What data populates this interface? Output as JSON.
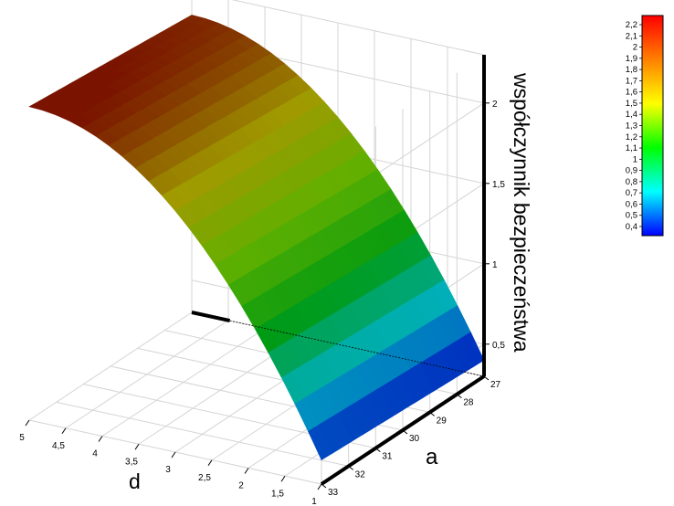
{
  "chart_data": {
    "type": "surface3d",
    "title": "",
    "zlabel": "współczynnik bezpieczeństwa",
    "xlabel": "a",
    "ylabel": "d",
    "a_ticks": [
      "27",
      "28",
      "29",
      "30",
      "31",
      "32",
      "33"
    ],
    "d_ticks": [
      "1",
      "1,5",
      "2",
      "2,5",
      "3",
      "3,5",
      "4",
      "4,5",
      "5"
    ],
    "z_ticks": [
      "0,5",
      "1",
      "1,5",
      "2"
    ],
    "a_range": [
      27,
      33
    ],
    "d_range": [
      1,
      5
    ],
    "z_range": [
      0.3,
      2.3
    ],
    "corner_values": [
      {
        "a": 33,
        "d": 1,
        "z": 0.45
      },
      {
        "a": 27,
        "d": 1,
        "z": 0.4
      },
      {
        "a": 33,
        "d": 5,
        "z": 2.25
      },
      {
        "a": 27,
        "d": 5,
        "z": 2.15
      }
    ],
    "colorbar": {
      "labels": [
        "2,2",
        "2,1",
        "2",
        "1,9",
        "1,8",
        "1,7",
        "1,6",
        "1,5",
        "1,4",
        "1,3",
        "1,2",
        "1,1",
        "1",
        "0,9",
        "0,8",
        "0,7",
        "0,6",
        "0,5",
        "0,4"
      ],
      "range": [
        0.4,
        2.2
      ],
      "colors": [
        "#ff0000",
        "#ff8000",
        "#ffff00",
        "#00ff00",
        "#00ffff",
        "#0000ff"
      ]
    },
    "surface_colors": [
      "#0010c0",
      "#00b0c0",
      "#009a10",
      "#60b000",
      "#a09a00",
      "#7a1400"
    ],
    "grid": true
  }
}
